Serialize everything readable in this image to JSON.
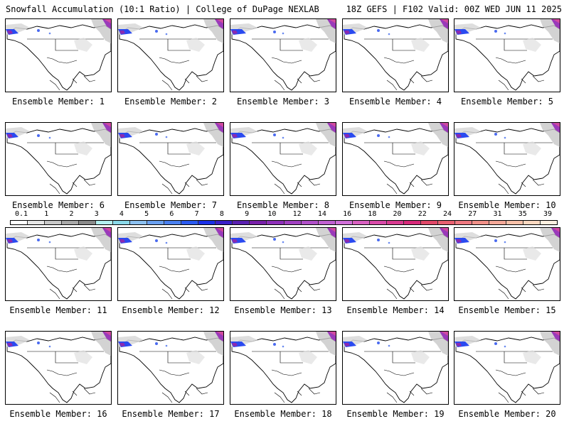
{
  "header": {
    "left": "Snowfall Accumulation (10:1 Ratio) | College of DuPage NEXLAB",
    "right": "18Z GEFS | F102 Valid: 00Z WED JUN 11 2025"
  },
  "members": [
    "Ensemble Member: 1",
    "Ensemble Member: 2",
    "Ensemble Member: 3",
    "Ensemble Member: 4",
    "Ensemble Member: 5",
    "Ensemble Member: 6",
    "Ensemble Member: 7",
    "Ensemble Member: 8",
    "Ensemble Member: 9",
    "Ensemble Member: 10",
    "Ensemble Member: 11",
    "Ensemble Member: 12",
    "Ensemble Member: 13",
    "Ensemble Member: 14",
    "Ensemble Member: 15",
    "Ensemble Member: 16",
    "Ensemble Member: 17",
    "Ensemble Member: 18",
    "Ensemble Member: 19",
    "Ensemble Member: 20"
  ],
  "colorbar": {
    "labels": [
      "0.1",
      "1",
      "2",
      "3",
      "4",
      "5",
      "6",
      "7",
      "8",
      "9",
      "10",
      "12",
      "14",
      "16",
      "18",
      "20",
      "22",
      "24",
      "27",
      "31",
      "35",
      "39"
    ],
    "colors": [
      "#ffffff",
      "#e6e6e6",
      "#c8c8c8",
      "#a8a8a8",
      "#8a8a8a",
      "#b4f0f0",
      "#8ad8e8",
      "#8cc0f0",
      "#6aa0f0",
      "#4a80f0",
      "#2a5af0",
      "#1a30e8",
      "#3a20c8",
      "#5a20b0",
      "#7820a8",
      "#8e30b8",
      "#a040c0",
      "#b050c8",
      "#c060d0",
      "#d070d8",
      "#d860c0",
      "#d84aa8",
      "#d83a90",
      "#d82a7a",
      "#e04868",
      "#e86070",
      "#ee7880",
      "#f09088",
      "#f4a898",
      "#f8c0a8",
      "#fcd8c0",
      "#fff0e0"
    ]
  }
}
